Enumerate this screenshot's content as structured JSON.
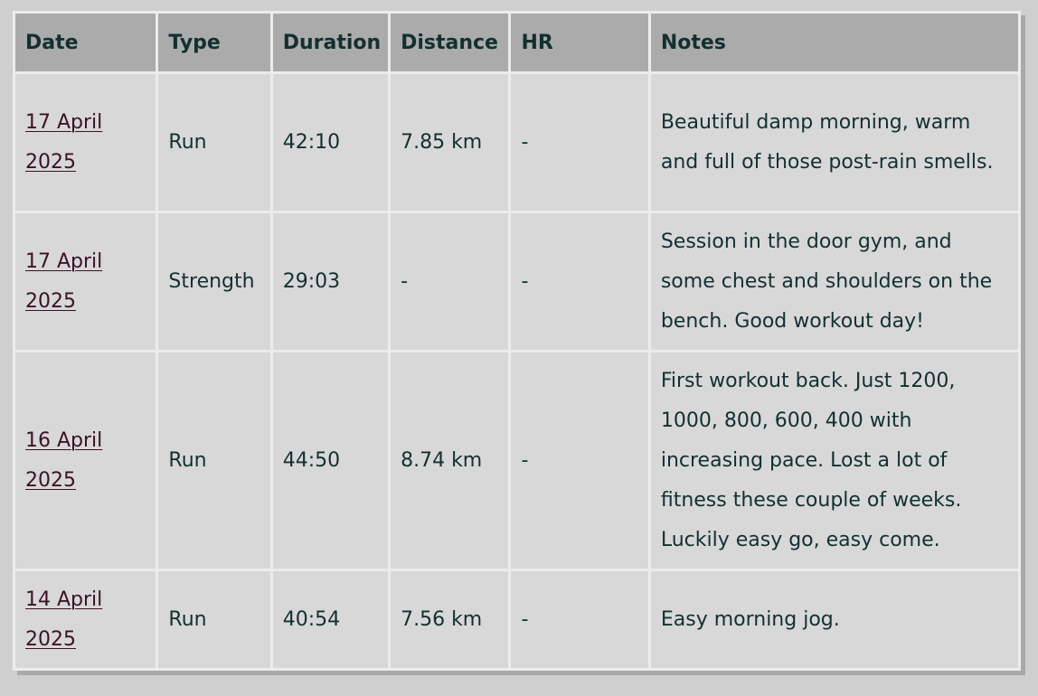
{
  "table": {
    "headers": [
      "Date",
      "Type",
      "Duration",
      "Distance",
      "HR",
      "Notes"
    ],
    "rows": [
      {
        "date": "17 April 2025",
        "type": "Run",
        "duration": "42:10",
        "distance": "7.85 km",
        "hr": "-",
        "notes": "Beautiful damp morning, warm and full of those post-rain smells."
      },
      {
        "date": "17 April 2025",
        "type": "Strength",
        "duration": "29:03",
        "distance": "-",
        "hr": "-",
        "notes": "Session in the door gym, and some chest and shoulders on the bench. Good workout day!"
      },
      {
        "date": "16 April 2025",
        "type": "Run",
        "duration": "44:50",
        "distance": "8.74 km",
        "hr": "-",
        "notes": "First workout back. Just 1200, 1000, 800, 600, 400 with increasing pace. Lost a lot of fitness these couple of weeks. Luckily easy go, easy come."
      },
      {
        "date": "14 April 2025",
        "type": "Run",
        "duration": "40:54",
        "distance": "7.56 km",
        "hr": "-",
        "notes": "Easy morning jog."
      }
    ]
  },
  "colors": {
    "header_bg": "#ababab",
    "cell_bg": "#d8d8d8",
    "text": "#13302f",
    "link": "#3a1326"
  }
}
